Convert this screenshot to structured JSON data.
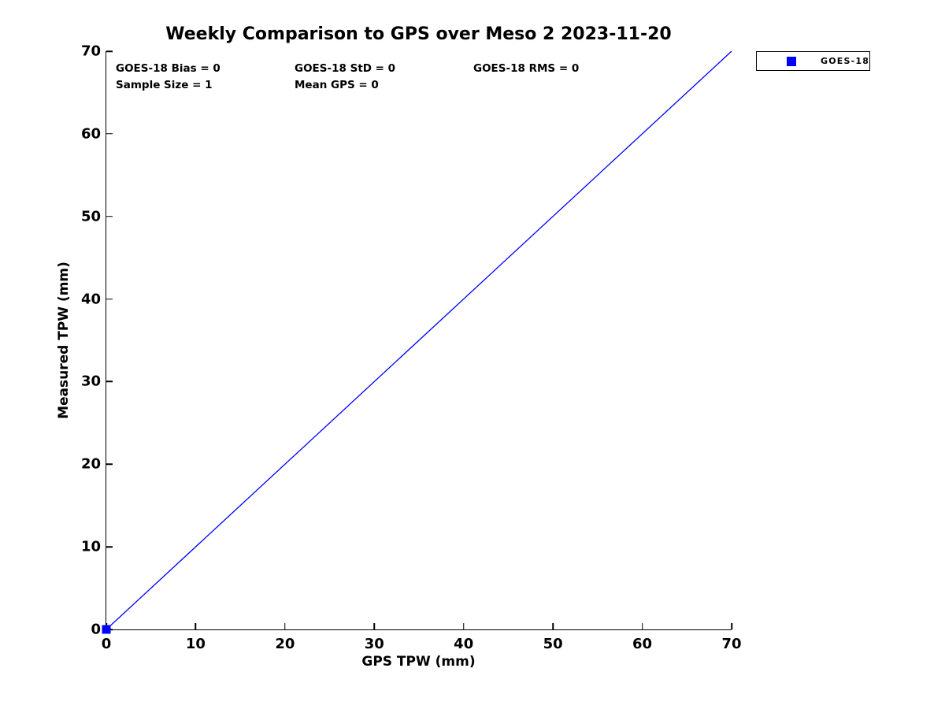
{
  "title": "Weekly Comparison to GPS over Meso 2 2023-11-20",
  "annotations": {
    "bias": "GOES-18 Bias = 0",
    "std": "GOES-18 StD = 0",
    "rms": "GOES-18 RMS = 0",
    "sample_size": "Sample Size = 1",
    "mean_gps": "Mean GPS = 0"
  },
  "legend": {
    "position": "top-right-outside",
    "entries": [
      {
        "label": "GOES-18",
        "marker": "square",
        "color": "#0000ff"
      }
    ]
  },
  "chart_data": {
    "type": "scatter",
    "title": "Weekly Comparison to GPS over Meso 2 2023-11-20",
    "xlabel": "GPS TPW (mm)",
    "ylabel": "Measured TPW (mm)",
    "xlim": [
      0,
      70
    ],
    "ylim": [
      0,
      70
    ],
    "x_ticks": [
      0,
      10,
      20,
      30,
      40,
      50,
      60,
      70
    ],
    "y_ticks": [
      0,
      10,
      20,
      30,
      40,
      50,
      60,
      70
    ],
    "grid": false,
    "legend_position": "top-right-outside",
    "series": [
      {
        "name": "GOES-18",
        "marker": "square",
        "color": "#0000ff",
        "x": [
          0
        ],
        "y": [
          0
        ]
      }
    ],
    "reference_line": {
      "x1": 0,
      "y1": 0,
      "x2": 70,
      "y2": 70,
      "color": "#0000ff"
    },
    "stats": {
      "bias": 0,
      "std": 0,
      "rms": 0,
      "sample_size": 1,
      "mean_gps": 0
    }
  },
  "colors": {
    "accent": "#0000ff",
    "axis": "#000000",
    "text": "#000000",
    "background": "#ffffff"
  }
}
